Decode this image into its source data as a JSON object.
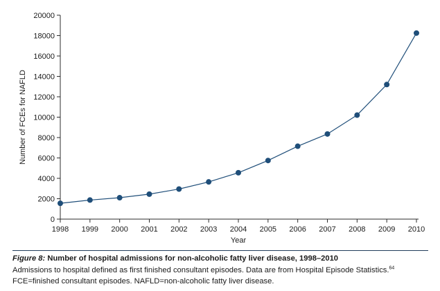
{
  "chart_data": {
    "type": "line",
    "title": "",
    "xlabel": "Year",
    "ylabel": "Number of FCEs for NAFLD",
    "x": [
      1998,
      1999,
      2000,
      2001,
      2002,
      2003,
      2004,
      2005,
      2006,
      2007,
      2008,
      2009,
      2010
    ],
    "series": [
      {
        "name": "FCEs for NAFLD",
        "values": [
          1550,
          1870,
          2100,
          2450,
          2950,
          3650,
          4550,
          5750,
          7150,
          8350,
          10200,
          13200,
          18250
        ],
        "color": "#1f4e79"
      }
    ],
    "xlim": [
      1998,
      2010
    ],
    "ylim": [
      0,
      20000
    ],
    "yticks": [
      0,
      2000,
      4000,
      6000,
      8000,
      10000,
      12000,
      14000,
      16000,
      18000,
      20000
    ],
    "yticklabels": [
      "0",
      "2000",
      "4000",
      "6000",
      "8000",
      "10000",
      "12000",
      "14000",
      "16000",
      "18000",
      "20000"
    ],
    "xticklabels": [
      "1998",
      "1999",
      "2000",
      "2001",
      "2002",
      "2003",
      "2004",
      "2005",
      "2006",
      "2007",
      "2008",
      "2009",
      "2010"
    ],
    "grid": false,
    "legend": "none"
  },
  "caption": {
    "figure_label": "Figure 8:",
    "figure_title": " Number of hospital admissions for non-alcoholic fatty liver disease, 1998–2010",
    "line1": "Admissions to hospital defined as first finished consultant episodes. Data are from Hospital Episode Statistics.",
    "ref": "64",
    "line2": "FCE=finished consultant episodes. NAFLD=non-alcoholic fatty liver disease."
  },
  "colors": {
    "axis": "#2b2b2b",
    "series": "#1f4e79",
    "rule": "#1f3b5a"
  }
}
